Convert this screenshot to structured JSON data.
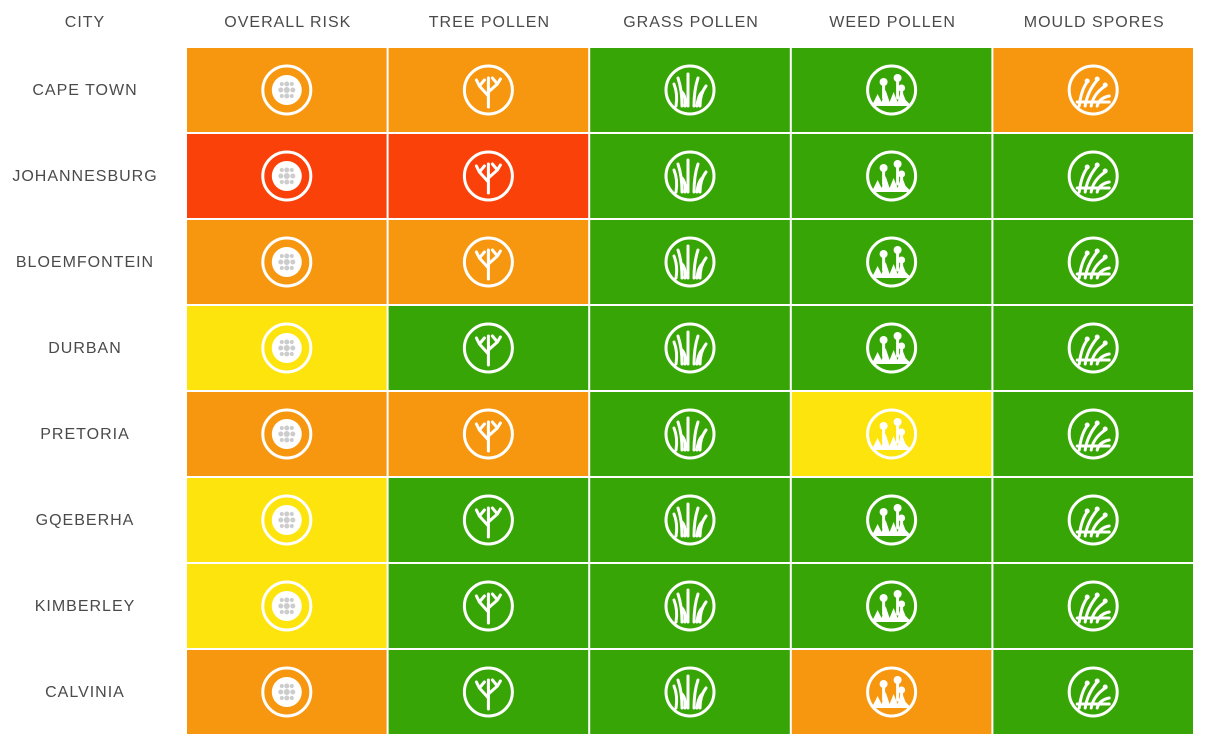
{
  "table": {
    "headers": [
      "CITY",
      "OVERALL RISK",
      "TREE POLLEN",
      "GRASS POLLEN",
      "WEED POLLEN",
      "MOULD SPORES"
    ],
    "rows": [
      {
        "city": "CAPE TOWN",
        "colors": [
          "#f7970f",
          "#f7970f",
          "#38a506",
          "#38a506",
          "#f7970f"
        ]
      },
      {
        "city": "JOHANNESBURG",
        "colors": [
          "#fb410a",
          "#fb410a",
          "#38a506",
          "#38a506",
          "#38a506"
        ]
      },
      {
        "city": "BLOEMFONTEIN",
        "colors": [
          "#f7970f",
          "#f7970f",
          "#38a506",
          "#38a506",
          "#38a506"
        ]
      },
      {
        "city": "DURBAN",
        "colors": [
          "#fde40c",
          "#38a506",
          "#38a506",
          "#38a506",
          "#38a506"
        ]
      },
      {
        "city": "PRETORIA",
        "colors": [
          "#f7970f",
          "#f7970f",
          "#38a506",
          "#fde40c",
          "#38a506"
        ]
      },
      {
        "city": "GQEBERHA",
        "colors": [
          "#fde40c",
          "#38a506",
          "#38a506",
          "#38a506",
          "#38a506"
        ]
      },
      {
        "city": "KIMBERLEY",
        "colors": [
          "#fde40c",
          "#38a506",
          "#38a506",
          "#38a506",
          "#38a506"
        ]
      },
      {
        "city": "CALVINIA",
        "colors": [
          "#f7970f",
          "#38a506",
          "#38a506",
          "#f7970f",
          "#38a506"
        ]
      }
    ]
  }
}
